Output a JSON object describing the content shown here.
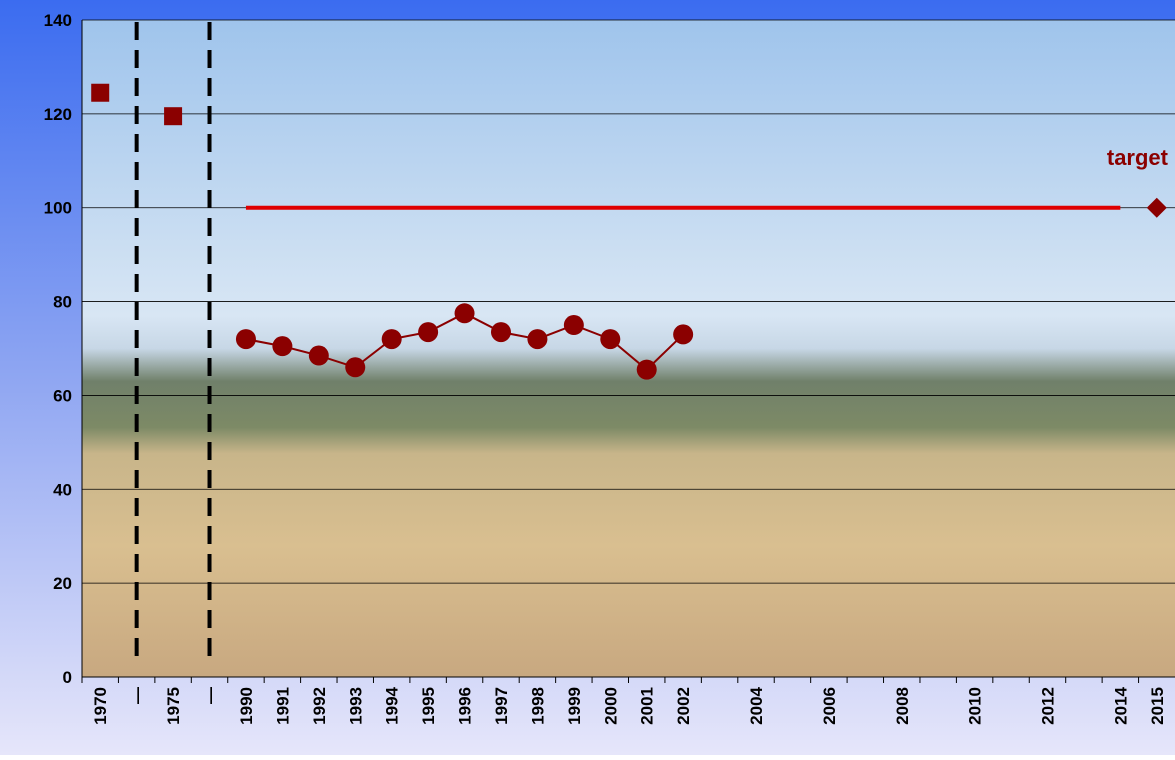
{
  "chart_data": {
    "type": "line",
    "categories": [
      "1970",
      "—",
      "1975",
      "—",
      "1990",
      "1991",
      "1992",
      "1993",
      "1994",
      "1995",
      "1996",
      "1997",
      "1998",
      "1999",
      "2000",
      "2001",
      "2002",
      null,
      "2004",
      null,
      "2006",
      null,
      "2008",
      null,
      "2010",
      null,
      "2012",
      null,
      "2014",
      "2015"
    ],
    "series": [
      {
        "color": "#8b0000",
        "marker": "square",
        "line": false,
        "values": [
          124.5,
          null,
          119.5,
          null,
          null,
          null,
          null,
          null,
          null,
          null,
          null,
          null,
          null,
          null,
          null,
          null,
          null,
          null,
          null,
          null,
          null,
          null,
          null,
          null,
          null,
          null,
          null,
          null,
          null,
          null
        ]
      },
      {
        "color": "#8b0000",
        "marker": "circle",
        "line": true,
        "values": [
          null,
          null,
          null,
          null,
          72,
          70.5,
          68.5,
          66,
          72,
          73.5,
          77.5,
          73.5,
          72,
          75,
          72,
          65.5,
          73,
          null,
          null,
          null,
          null,
          null,
          null,
          null,
          null,
          null,
          null,
          null,
          null,
          null
        ]
      },
      {
        "color": "#e00000",
        "marker": "none",
        "line": true,
        "values": [
          null,
          null,
          null,
          null,
          100,
          100,
          100,
          100,
          100,
          100,
          100,
          100,
          100,
          100,
          100,
          100,
          100,
          100,
          100,
          100,
          100,
          100,
          100,
          100,
          100,
          100,
          100,
          100,
          100,
          null
        ]
      },
      {
        "color": "#8b0000",
        "marker": "diamond",
        "line": false,
        "values": [
          null,
          null,
          null,
          null,
          null,
          null,
          null,
          null,
          null,
          null,
          null,
          null,
          null,
          null,
          null,
          null,
          null,
          null,
          null,
          null,
          null,
          null,
          null,
          null,
          null,
          null,
          null,
          null,
          null,
          100
        ]
      }
    ],
    "annotation": "target",
    "ylim": [
      0,
      140
    ],
    "yticks": [
      0,
      20,
      40,
      60,
      80,
      100,
      120,
      140
    ],
    "grid": true
  }
}
